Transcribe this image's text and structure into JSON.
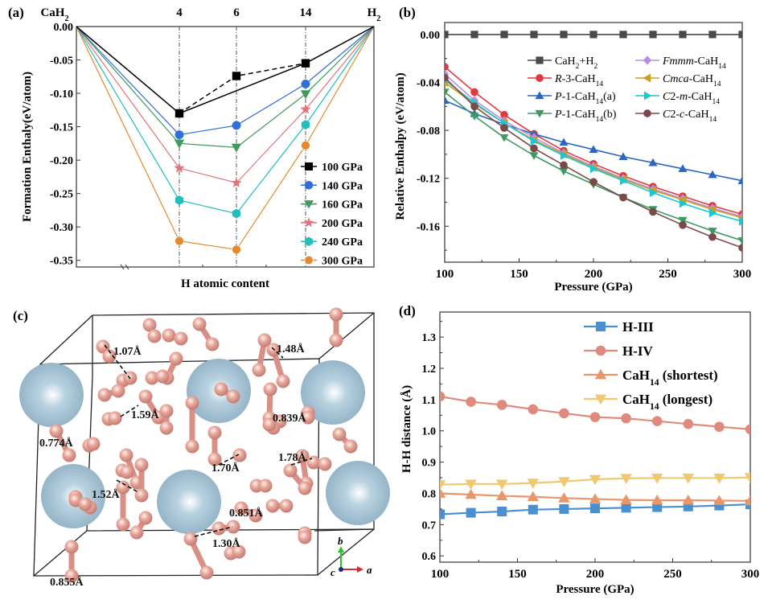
{
  "figure": {
    "panels": {
      "a": {
        "label": "(a)"
      },
      "b": {
        "label": "(b)"
      },
      "c": {
        "label": "(c)"
      },
      "d": {
        "label": "(d)"
      }
    }
  },
  "chart_data": [
    {
      "panel": "a",
      "type": "line",
      "title": "",
      "xlabel": "H atomic content",
      "ylabel": "Formation Enthaly(eV/atom)",
      "ylim": [
        -0.36,
        0.0
      ],
      "yticks": [
        0.0,
        -0.05,
        -0.1,
        -0.15,
        -0.2,
        -0.25,
        -0.3,
        -0.35
      ],
      "ytick_labels": [
        "0.00",
        "-0.05",
        "-0.10",
        "-0.15",
        "-0.20",
        "-0.25",
        "-0.30",
        "-0.35"
      ],
      "x_positions": [
        "CaH2",
        "4",
        "6",
        "14",
        "H2"
      ],
      "top_labels": [
        "CaH",
        "4",
        "6",
        "14",
        "H"
      ],
      "top_label_subscripts": [
        "2",
        "",
        "",
        "",
        "2"
      ],
      "legend_position": "bottom-right",
      "axis_break": true,
      "series": [
        {
          "name": "100 GPa",
          "color": "#000000",
          "marker": "square",
          "values": [
            0.0,
            -0.13,
            -0.074,
            -0.055,
            0.0
          ],
          "hull_skip": [
            2
          ]
        },
        {
          "name": "140 GPa",
          "color": "#2f6fd6",
          "marker": "circle",
          "values": [
            0.0,
            -0.162,
            -0.148,
            -0.086,
            0.0
          ]
        },
        {
          "name": "160 GPa",
          "color": "#3f9a5c",
          "marker": "triangle-down",
          "values": [
            0.0,
            -0.175,
            -0.181,
            -0.101,
            0.0
          ]
        },
        {
          "name": "200 GPa",
          "color": "#e07478",
          "marker": "star",
          "values": [
            0.0,
            -0.212,
            -0.234,
            -0.124,
            0.0
          ]
        },
        {
          "name": "240 GPa",
          "color": "#22bdbd",
          "marker": "hexagon",
          "values": [
            0.0,
            -0.26,
            -0.28,
            -0.147,
            0.0
          ]
        },
        {
          "name": "300 GPa",
          "color": "#e58a2c",
          "marker": "half-circle",
          "values": [
            0.0,
            -0.321,
            -0.334,
            -0.178,
            0.0
          ]
        }
      ]
    },
    {
      "panel": "b",
      "type": "line",
      "title": "",
      "xlabel": "Pressure (GPa)",
      "ylabel": "Relative Enthalpy (eV/atom)",
      "xlim": [
        100,
        300
      ],
      "ylim": [
        -0.19,
        0.01
      ],
      "xticks": [
        100,
        150,
        200,
        250,
        300
      ],
      "yticks": [
        0.0,
        -0.04,
        -0.08,
        -0.12,
        -0.16
      ],
      "ytick_labels": [
        "0.00",
        "-0.04",
        "-0.08",
        "-0.12",
        "-0.16"
      ],
      "x": [
        100,
        120,
        140,
        160,
        180,
        200,
        220,
        240,
        260,
        280,
        300
      ],
      "legend_position": "top-right",
      "legend_columns": 2,
      "series": [
        {
          "name": "CaH2+H2",
          "label_parts": [
            [
              "CaH",
              ""
            ],
            [
              "2",
              "sub"
            ],
            [
              "+H",
              ""
            ],
            [
              "2",
              "sub"
            ]
          ],
          "color": "#4a4a4a",
          "marker": "square",
          "values": [
            0,
            0,
            0,
            0,
            0,
            0,
            0,
            0,
            0,
            0,
            0
          ]
        },
        {
          "name": "R-3-CaH14",
          "label_parts": [
            [
              "R",
              "i"
            ],
            [
              "-3-CaH",
              ""
            ],
            [
              "14",
              "sub"
            ]
          ],
          "color": "#e0393e",
          "marker": "circle",
          "values": [
            -0.027,
            -0.048,
            -0.067,
            -0.083,
            -0.097,
            -0.108,
            -0.118,
            -0.127,
            -0.135,
            -0.143,
            -0.15
          ]
        },
        {
          "name": "P-1-CaH14(a)",
          "label_parts": [
            [
              "P",
              "i"
            ],
            [
              "-1-CaH",
              ""
            ],
            [
              "14",
              "sub"
            ],
            [
              "(a)",
              ""
            ]
          ],
          "color": "#2b66c0",
          "marker": "triangle-up",
          "values": [
            -0.055,
            -0.066,
            -0.075,
            -0.083,
            -0.09,
            -0.096,
            -0.102,
            -0.107,
            -0.112,
            -0.117,
            -0.122
          ]
        },
        {
          "name": "P-1-CaH14(b)",
          "label_parts": [
            [
              "P",
              "i"
            ],
            [
              "-1-CaH",
              ""
            ],
            [
              "14",
              "sub"
            ],
            [
              "(b)",
              ""
            ]
          ],
          "color": "#3d9a60",
          "marker": "triangle-down",
          "values": [
            -0.048,
            -0.068,
            -0.086,
            -0.101,
            -0.114,
            -0.125,
            -0.136,
            -0.146,
            -0.155,
            -0.164,
            -0.172
          ]
        },
        {
          "name": "Fmmm-CaH14",
          "label_parts": [
            [
              "Fmmm",
              "i"
            ],
            [
              "-CaH",
              ""
            ],
            [
              "14",
              "sub"
            ]
          ],
          "color": "#b98ee0",
          "marker": "diamond",
          "values": [
            -0.033,
            -0.055,
            -0.072,
            -0.086,
            -0.099,
            -0.11,
            -0.12,
            -0.129,
            -0.137,
            -0.145,
            -0.152
          ]
        },
        {
          "name": "Cmca-CaH14",
          "label_parts": [
            [
              "Cmca",
              "i"
            ],
            [
              "-CaH",
              ""
            ],
            [
              "14",
              "sub"
            ]
          ],
          "color": "#c9a11e",
          "marker": "triangle-left",
          "values": [
            -0.04,
            -0.058,
            -0.074,
            -0.088,
            -0.1,
            -0.111,
            -0.121,
            -0.13,
            -0.138,
            -0.146,
            -0.153
          ]
        },
        {
          "name": "C2-m-CaH14",
          "label_parts": [
            [
              "C",
              "i"
            ],
            [
              "2-",
              ""
            ],
            [
              "m",
              "i"
            ],
            [
              "-CaH",
              ""
            ],
            [
              "14",
              "sub"
            ]
          ],
          "color": "#1ec6d0",
          "marker": "triangle-right",
          "values": [
            -0.038,
            -0.057,
            -0.074,
            -0.089,
            -0.101,
            -0.112,
            -0.122,
            -0.132,
            -0.141,
            -0.149,
            -0.156
          ]
        },
        {
          "name": "C2-c-CaH14",
          "label_parts": [
            [
              "C",
              "i"
            ],
            [
              "2-",
              ""
            ],
            [
              "c",
              "i"
            ],
            [
              "-CaH",
              ""
            ],
            [
              "14",
              "sub"
            ]
          ],
          "color": "#7a4a48",
          "marker": "circle",
          "values": [
            -0.036,
            -0.06,
            -0.078,
            -0.095,
            -0.109,
            -0.123,
            -0.136,
            -0.148,
            -0.159,
            -0.169,
            -0.178
          ]
        }
      ]
    },
    {
      "panel": "d",
      "type": "line",
      "title": "",
      "xlabel": "Pressure (GPa)",
      "ylabel": "H-H distance (Å)",
      "xlim": [
        100,
        300
      ],
      "ylim": [
        0.58,
        1.38
      ],
      "xticks": [
        100,
        150,
        200,
        250,
        300
      ],
      "yticks": [
        0.6,
        0.7,
        0.8,
        0.9,
        1.0,
        1.1,
        1.2,
        1.3
      ],
      "ytick_labels": [
        "0.6",
        "0.7",
        "0.8",
        "0.9",
        "1.0",
        "1.1",
        "1.2",
        "1.3"
      ],
      "x": [
        100,
        120,
        140,
        160,
        180,
        200,
        220,
        240,
        260,
        280,
        300
      ],
      "legend_position": "top-right",
      "series": [
        {
          "name": "H-III",
          "label_parts": [
            [
              "H-III",
              ""
            ]
          ],
          "color": "#4a8fcf",
          "marker": "square",
          "values": [
            0.733,
            0.738,
            0.742,
            0.748,
            0.75,
            0.752,
            0.754,
            0.756,
            0.758,
            0.761,
            0.765
          ]
        },
        {
          "name": "H-IV",
          "label_parts": [
            [
              "H-IV",
              ""
            ]
          ],
          "color": "#e08a7e",
          "marker": "circle",
          "values": [
            1.11,
            1.093,
            1.083,
            1.069,
            1.056,
            1.044,
            1.04,
            1.031,
            1.022,
            1.013,
            1.005
          ]
        },
        {
          "name": "CaH14 (shortest)",
          "label_parts": [
            [
              "CaH",
              ""
            ],
            [
              "14",
              "sub"
            ],
            [
              " (shortest)",
              ""
            ]
          ],
          "color": "#e8966a",
          "marker": "triangle-up",
          "values": [
            0.8,
            0.796,
            0.792,
            0.789,
            0.785,
            0.782,
            0.779,
            0.778,
            0.778,
            0.777,
            0.776
          ]
        },
        {
          "name": "CaH14 (longest)",
          "label_parts": [
            [
              "CaH",
              ""
            ],
            [
              "14",
              "sub"
            ],
            [
              " (longest)",
              ""
            ]
          ],
          "color": "#f0c870",
          "marker": "triangle-down",
          "values": [
            0.828,
            0.83,
            0.83,
            0.833,
            0.838,
            0.845,
            0.848,
            0.849,
            0.849,
            0.849,
            0.851
          ]
        }
      ]
    }
  ],
  "structure": {
    "description": "Crystal structure of CaH14",
    "ca_color": "#8fb0c4",
    "h_color": "#e8a79b",
    "bond_labels": [
      "1.07Å",
      "1.48Å",
      "1.59Å",
      "0.839Å",
      "0.774Å",
      "1.78Å",
      "1.70Å",
      "1.52Å",
      "0.851Å",
      "1.30Å",
      "0.855Å"
    ],
    "axes": {
      "a": "a",
      "b": "b",
      "c": "c"
    },
    "axis_colors": {
      "a": "#d03030",
      "b": "#30c030",
      "c": "#1a2a8a"
    }
  }
}
